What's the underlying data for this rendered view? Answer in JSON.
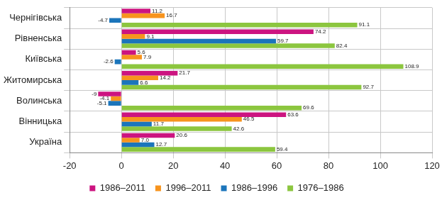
{
  "chart_data": {
    "type": "bar",
    "orientation": "horizontal",
    "categories": [
      "Чернігівська",
      "Рівненська",
      "Київська",
      "Житомирська",
      "Волинська",
      "Вінницька",
      "Україна"
    ],
    "series": [
      {
        "name": "1986–2011",
        "color": "#cc1480",
        "values": [
          11.2,
          74.2,
          5.6,
          21.7,
          -9,
          63.6,
          20.6
        ]
      },
      {
        "name": "1996–2011",
        "color": "#f7941e",
        "values": [
          16.7,
          9.1,
          7.9,
          14.2,
          -4.1,
          46.5,
          7.0
        ],
        "value_labels": [
          "16.7",
          "9.1",
          "7.9",
          "14.2",
          "-4.1",
          "46.5",
          "7.0"
        ]
      },
      {
        "name": "1986–1996",
        "color": "#1b75bb",
        "values": [
          -4.7,
          59.7,
          -2.6,
          6.6,
          -5.1,
          11.7,
          12.7
        ]
      },
      {
        "name": "1976–1986",
        "color": "#8cc63f",
        "values": [
          91.1,
          82.4,
          108.9,
          92.7,
          69.6,
          42.6,
          59.4
        ]
      }
    ],
    "xlim": [
      -20,
      120
    ],
    "xticks": [
      -20,
      0,
      20,
      40,
      60,
      80,
      100,
      120
    ],
    "grid": true,
    "legend": "bottom",
    "data_labels": true
  }
}
